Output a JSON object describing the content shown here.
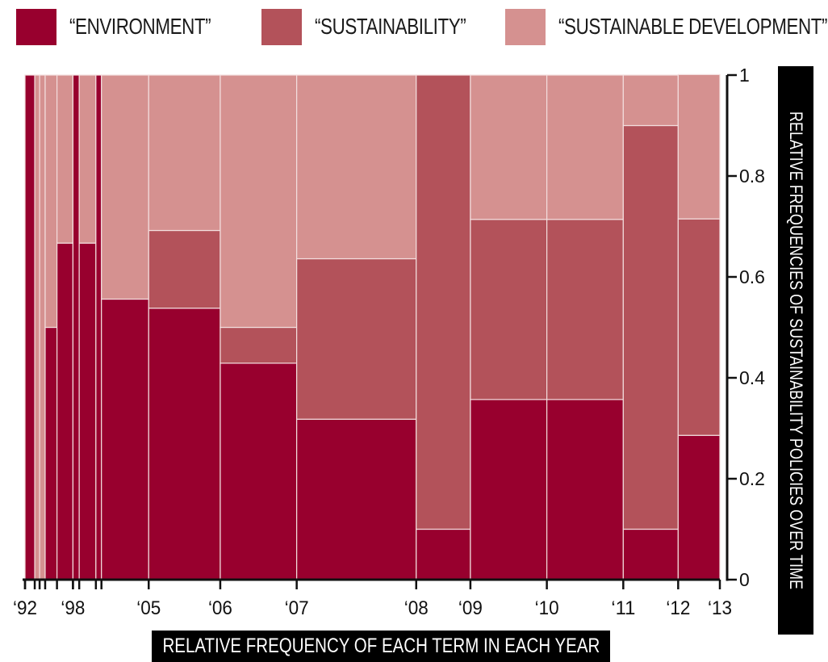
{
  "colors": {
    "environment": "#98002e",
    "sustainability": "#b3525a",
    "sustainable_development": "#d59190"
  },
  "legend": [
    {
      "label": "“ENVIRONMENT”",
      "color": "#98002e"
    },
    {
      "label": "“SUSTAINABILITY”",
      "color": "#b3525a"
    },
    {
      "label": "“SUSTAINABLE DEVELOPMENT”",
      "color": "#d59190"
    }
  ],
  "chart_data": {
    "type": "mosaic",
    "xlabel": "RELATIVE FREQUENCY OF EACH TERM IN EACH YEAR",
    "ylabel": "RELATIVE FREQUENCIES OF SUSTAINABILITY POLICIES OVER TIME",
    "ylim": [
      0,
      1
    ],
    "yticks": [
      0,
      0.2,
      0.4,
      0.6,
      0.8,
      1
    ],
    "ytick_labels": [
      "0",
      "0.2",
      "0.4",
      "0.6",
      "0.8",
      "1"
    ],
    "series_names": [
      "“ENVIRONMENT”",
      "“SUSTAINABILITY”",
      "“SUSTAINABLE DEVELOPMENT”"
    ],
    "xlim": [
      0,
      100
    ],
    "xtick_labels": [
      {
        "label": "‘92",
        "x": 0
      },
      {
        "label": "‘98",
        "x": 6.9
      },
      {
        "label": "‘05",
        "x": 17.8
      },
      {
        "label": "‘06",
        "x": 28.1
      },
      {
        "label": "‘07",
        "x": 39.1
      },
      {
        "label": "‘08",
        "x": 56.3
      },
      {
        "label": "‘09",
        "x": 64.1
      },
      {
        "label": "‘10",
        "x": 75.1
      },
      {
        "label": "‘11",
        "x": 86.1
      },
      {
        "label": "‘12",
        "x": 94.0
      },
      {
        "label": "‘13",
        "x": 100
      }
    ],
    "minor_ticks": [
      0,
      1.4,
      2.1,
      2.9,
      4.6,
      6.9,
      7.8,
      10.2,
      11.0
    ],
    "columns": [
      {
        "x0": 0.0,
        "x1": 1.4,
        "values": [
          1.0,
          0.0,
          0.0
        ]
      },
      {
        "x0": 1.4,
        "x1": 2.1,
        "values": [
          0.0,
          0.0,
          1.0
        ]
      },
      {
        "x0": 2.1,
        "x1": 2.9,
        "values": [
          0.0,
          0.0,
          1.0
        ]
      },
      {
        "x0": 2.9,
        "x1": 4.6,
        "values": [
          0.5,
          0.0,
          0.5
        ]
      },
      {
        "x0": 4.6,
        "x1": 6.9,
        "values": [
          0.667,
          0.0,
          0.333
        ]
      },
      {
        "x0": 6.9,
        "x1": 7.8,
        "values": [
          1.0,
          0.0,
          0.0
        ]
      },
      {
        "x0": 7.8,
        "x1": 10.2,
        "values": [
          0.667,
          0.0,
          0.333
        ]
      },
      {
        "x0": 10.2,
        "x1": 11.0,
        "values": [
          1.0,
          0.0,
          0.0
        ]
      },
      {
        "x0": 11.0,
        "x1": 17.8,
        "values": [
          0.556,
          0.0,
          0.444
        ]
      },
      {
        "x0": 17.8,
        "x1": 28.1,
        "values": [
          0.538,
          0.154,
          0.308
        ]
      },
      {
        "x0": 28.1,
        "x1": 39.1,
        "values": [
          0.429,
          0.071,
          0.5
        ]
      },
      {
        "x0": 39.1,
        "x1": 56.3,
        "values": [
          0.318,
          0.318,
          0.364
        ]
      },
      {
        "x0": 56.3,
        "x1": 64.1,
        "values": [
          0.1,
          0.9,
          0.0
        ]
      },
      {
        "x0": 64.1,
        "x1": 75.1,
        "values": [
          0.357,
          0.357,
          0.286
        ]
      },
      {
        "x0": 75.1,
        "x1": 86.1,
        "values": [
          0.357,
          0.357,
          0.286
        ]
      },
      {
        "x0": 86.1,
        "x1": 94.0,
        "values": [
          0.1,
          0.8,
          0.1
        ]
      },
      {
        "x0": 94.0,
        "x1": 100.0,
        "values": [
          0.286,
          0.429,
          0.286
        ]
      }
    ]
  }
}
